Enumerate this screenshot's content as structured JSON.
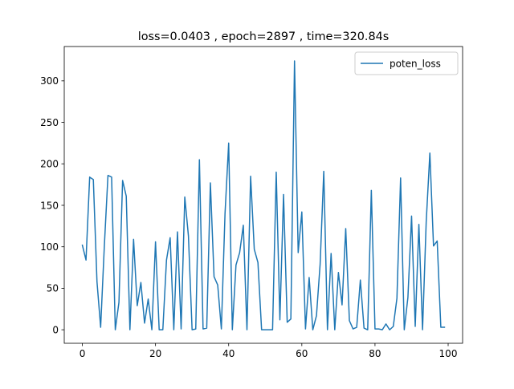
{
  "chart_data": {
    "type": "line",
    "title": "loss=0.0403 , epoch=2897 , time=320.84s",
    "xlabel": "",
    "ylabel": "",
    "xlim": [
      -4.95,
      103.95
    ],
    "ylim": [
      -16.3,
      341.4
    ],
    "xticks": [
      0,
      20,
      40,
      60,
      80,
      100
    ],
    "yticks": [
      0,
      50,
      100,
      150,
      200,
      250,
      300
    ],
    "grid": false,
    "legend_position": "top-right",
    "series": [
      {
        "name": "poten_loss",
        "color": "#1f77b4",
        "x": [
          0,
          1,
          2,
          3,
          4,
          5,
          6,
          7,
          8,
          9,
          10,
          11,
          12,
          13,
          14,
          15,
          16,
          17,
          18,
          19,
          20,
          21,
          22,
          23,
          24,
          25,
          26,
          27,
          28,
          29,
          30,
          31,
          32,
          33,
          34,
          35,
          36,
          37,
          38,
          39,
          40,
          41,
          42,
          43,
          44,
          45,
          46,
          47,
          48,
          49,
          50,
          51,
          52,
          53,
          54,
          55,
          56,
          57,
          58,
          59,
          60,
          61,
          62,
          63,
          64,
          65,
          66,
          67,
          68,
          69,
          70,
          71,
          72,
          73,
          74,
          75,
          76,
          77,
          78,
          79,
          80,
          81,
          82,
          83,
          84,
          85,
          86,
          87,
          88,
          89,
          90,
          91,
          92,
          93,
          94,
          95,
          96,
          97,
          98,
          99
        ],
        "values": [
          102,
          84,
          184,
          181,
          58,
          3,
          100,
          186,
          184,
          0,
          33,
          180,
          161,
          0,
          109,
          29,
          57,
          8,
          37,
          0,
          106,
          0,
          0,
          84,
          111,
          0,
          118,
          1,
          160,
          113,
          0,
          1,
          205,
          1,
          2,
          177,
          64,
          54,
          1,
          140,
          225,
          0,
          78,
          93,
          126,
          0,
          185,
          97,
          81,
          0,
          0,
          0,
          0,
          190,
          12,
          163,
          9,
          13,
          324,
          93,
          142,
          1,
          63,
          0,
          17,
          79,
          191,
          0,
          92,
          0,
          69,
          30,
          122,
          11,
          1,
          3,
          60,
          2,
          0,
          168,
          1,
          1,
          0,
          7,
          0,
          4,
          38,
          183,
          0,
          39,
          137,
          4,
          127,
          0,
          130,
          213,
          101,
          107,
          3,
          3
        ]
      }
    ]
  }
}
